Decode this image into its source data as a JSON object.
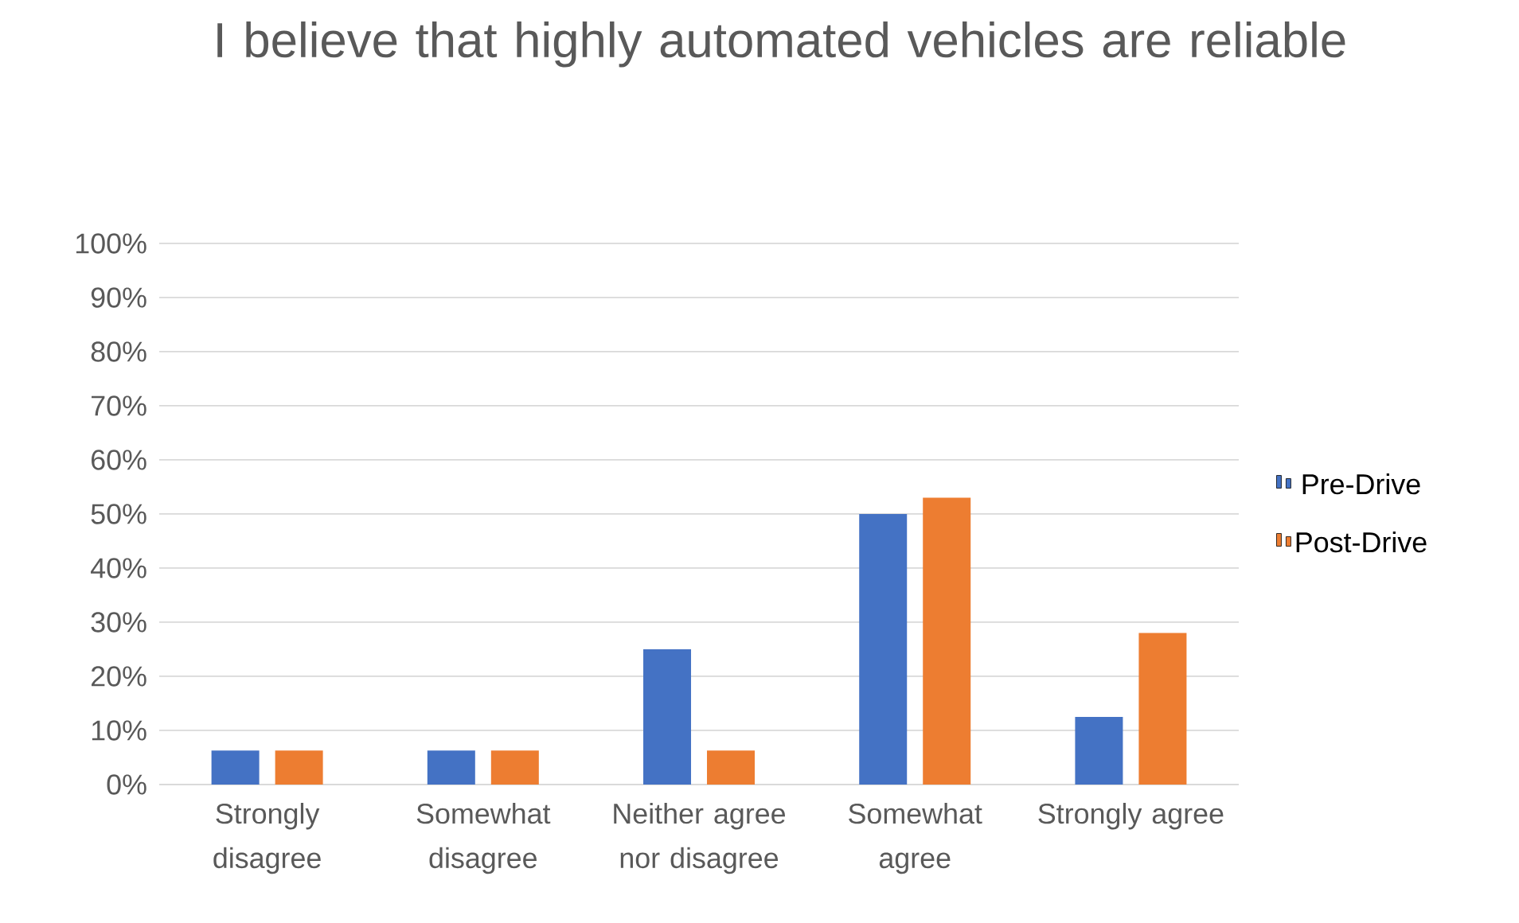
{
  "chart_data": {
    "type": "bar",
    "title": "I believe that highly automated vehicles are reliable",
    "categories": [
      "Strongly disagree",
      "Somewhat disagree",
      "Neither agree nor disagree",
      "Somewhat agree",
      "Strongly agree"
    ],
    "series": [
      {
        "name": "Pre-Drive",
        "color": "#4472c4",
        "values": [
          6.3,
          6.3,
          25,
          50,
          12.5
        ]
      },
      {
        "name": "Post-Drive",
        "color": "#ed7d31",
        "values": [
          6.3,
          6.3,
          6.3,
          53,
          28
        ]
      }
    ],
    "ylim": [
      0,
      100
    ],
    "yticks": [
      {
        "value": 0,
        "label": "0%"
      },
      {
        "value": 10,
        "label": "10%"
      },
      {
        "value": 20,
        "label": "20%"
      },
      {
        "value": 30,
        "label": "30%"
      },
      {
        "value": 40,
        "label": "40%"
      },
      {
        "value": 50,
        "label": "50%"
      },
      {
        "value": 60,
        "label": "60%"
      },
      {
        "value": 70,
        "label": "70%"
      },
      {
        "value": 80,
        "label": "80%"
      },
      {
        "value": 90,
        "label": "90%"
      },
      {
        "value": 100,
        "label": "100%"
      }
    ],
    "grid": "y",
    "legend": "right"
  }
}
